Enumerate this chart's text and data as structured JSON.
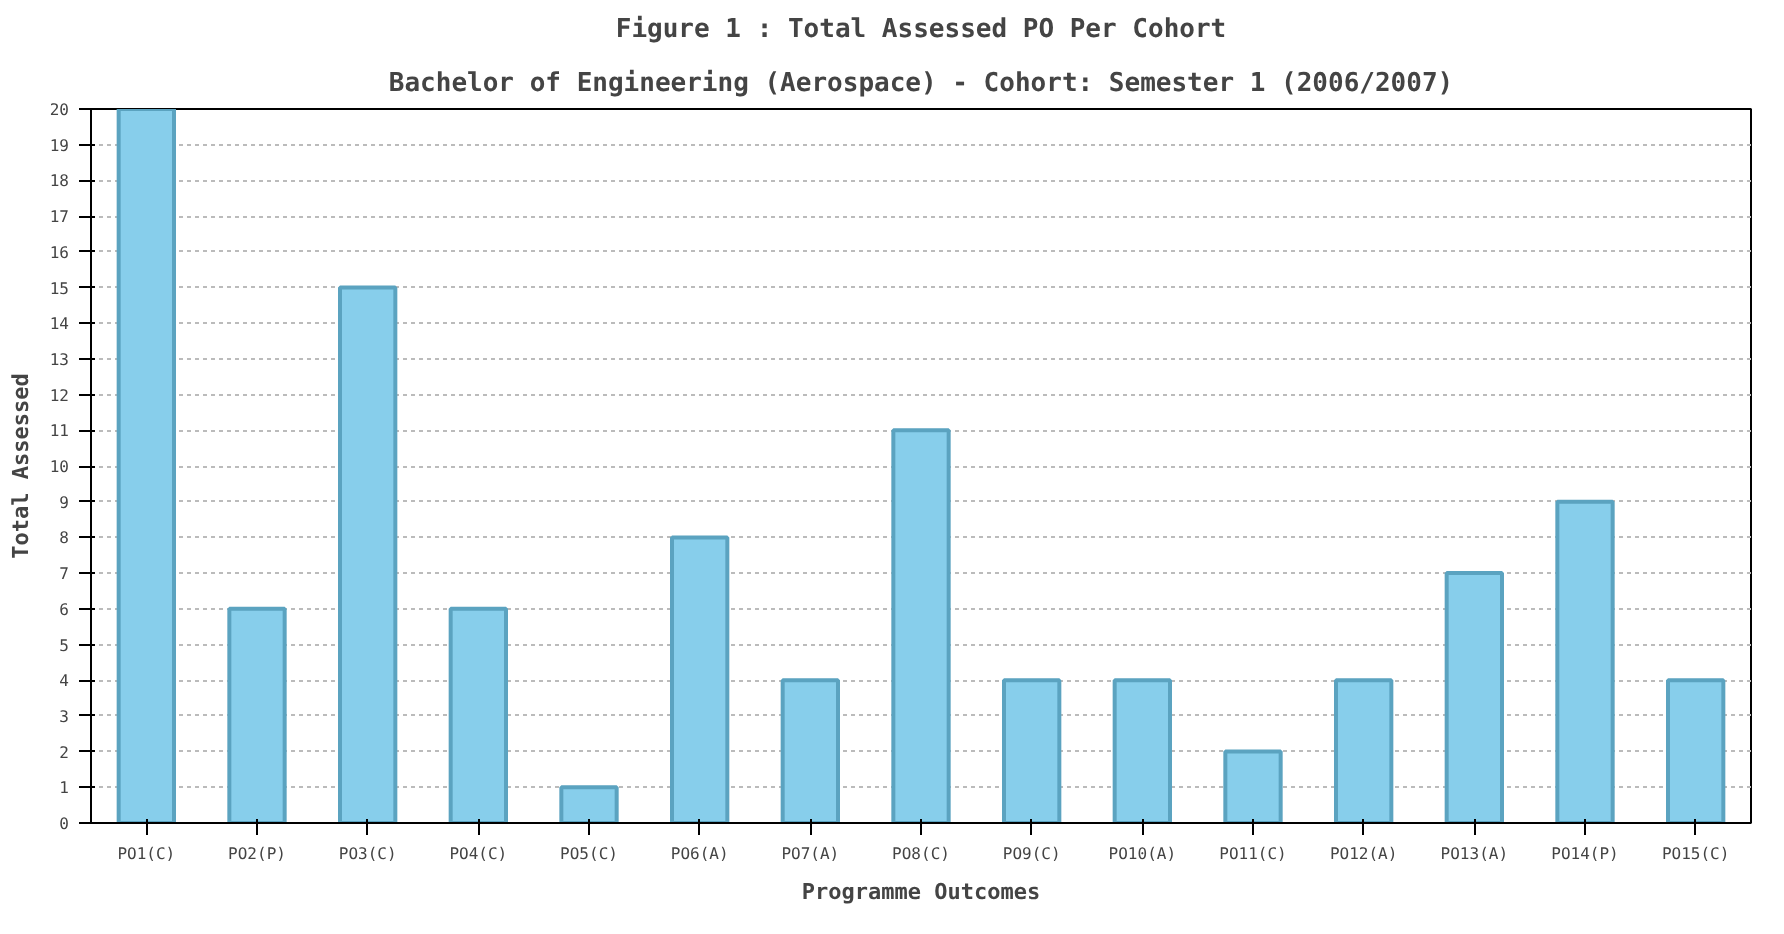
{
  "chart_data": {
    "type": "bar",
    "title": "Figure 1 : Total Assessed PO Per Cohort",
    "subtitle": "Bachelor of Engineering (Aerospace) - Cohort: Semester 1 (2006/2007)",
    "xlabel": "Programme Outcomes",
    "ylabel": "Total Assessed",
    "categories": [
      "PO1(C)",
      "PO2(P)",
      "PO3(C)",
      "PO4(C)",
      "PO5(C)",
      "PO6(A)",
      "PO7(A)",
      "PO8(C)",
      "PO9(C)",
      "PO10(A)",
      "PO11(C)",
      "PO12(A)",
      "PO13(A)",
      "PO14(P)",
      "PO15(C)"
    ],
    "values": [
      20,
      6,
      15,
      6,
      1,
      8,
      4,
      11,
      4,
      4,
      2,
      4,
      7,
      9,
      4
    ],
    "color": "#87ceeb",
    "ylim": [
      0,
      20
    ],
    "yticks": [
      0,
      1,
      2,
      3,
      4,
      5,
      6,
      7,
      8,
      9,
      10,
      11,
      12,
      13,
      14,
      15,
      16,
      17,
      18,
      19,
      20
    ],
    "grid": "y"
  }
}
